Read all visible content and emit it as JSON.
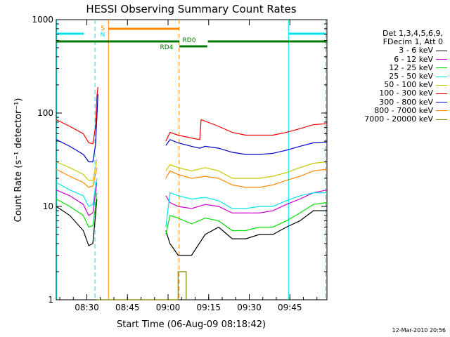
{
  "chart_data": {
    "type": "line",
    "title": "HESSI Observing Summary Count Rates",
    "xlabel": "Start Time (06-Aug-09 08:18:42)",
    "ylabel": "Count Rate (s⁻¹ detector⁻¹)",
    "yscale": "log",
    "ylim": [
      1,
      1000
    ],
    "xlim_minutes": [
      0,
      100
    ],
    "x_unit": "minutes after 08:18:42",
    "x_ticks": [
      {
        "label": "08:30",
        "minute": 11.3
      },
      {
        "label": "08:45",
        "minute": 26.3
      },
      {
        "label": "09:00",
        "minute": 41.3
      },
      {
        "label": "09:15",
        "minute": 56.3
      },
      {
        "label": "09:30",
        "minute": 71.3
      },
      {
        "label": "09:45",
        "minute": 86.3
      }
    ],
    "y_ticks": [
      {
        "label": "1",
        "value": 1
      },
      {
        "label": "10",
        "value": 10
      },
      {
        "label": "100",
        "value": 100
      },
      {
        "label": "1000",
        "value": 1000
      }
    ],
    "legend_header": [
      "Det 1,3,4,5,6,9,",
      "FDecim 1, Att 0"
    ],
    "series": [
      {
        "name": "3 - 6 keV",
        "color": "#000000",
        "points": [
          [
            0,
            10
          ],
          [
            5,
            8
          ],
          [
            10,
            5.5
          ],
          [
            12,
            3.8
          ],
          [
            13.5,
            4
          ],
          [
            14.5,
            8
          ],
          [
            15,
            12
          ],
          [
            16,
            null
          ],
          [
            40,
            null
          ],
          [
            40.5,
            5.5
          ],
          [
            42,
            4
          ],
          [
            45,
            3
          ],
          [
            50,
            3
          ],
          [
            55,
            5
          ],
          [
            60,
            6
          ],
          [
            65,
            4.5
          ],
          [
            70,
            4.5
          ],
          [
            75,
            5
          ],
          [
            80,
            5
          ],
          [
            85,
            6
          ],
          [
            90,
            7
          ],
          [
            95,
            9
          ],
          [
            100,
            9
          ]
        ]
      },
      {
        "name": "6 - 12 keV",
        "color": "#cc00cc",
        "points": [
          [
            0,
            15
          ],
          [
            5,
            13
          ],
          [
            10,
            10.5
          ],
          [
            12,
            8
          ],
          [
            13.5,
            8.5
          ],
          [
            14.5,
            14
          ],
          [
            15,
            18
          ],
          [
            16,
            null
          ],
          [
            40,
            null
          ],
          [
            40.5,
            13
          ],
          [
            42,
            11
          ],
          [
            45,
            10
          ],
          [
            50,
            9.5
          ],
          [
            55,
            10.5
          ],
          [
            60,
            10
          ],
          [
            65,
            8.5
          ],
          [
            70,
            8.5
          ],
          [
            75,
            8.5
          ],
          [
            80,
            9
          ],
          [
            85,
            10.5
          ],
          [
            90,
            12
          ],
          [
            95,
            14
          ],
          [
            100,
            15
          ]
        ]
      },
      {
        "name": "12 - 25 keV",
        "color": "#00dd00",
        "points": [
          [
            0,
            12
          ],
          [
            5,
            10
          ],
          [
            10,
            8
          ],
          [
            12,
            6
          ],
          [
            13.5,
            6.2
          ],
          [
            14.5,
            10
          ],
          [
            15,
            14
          ],
          [
            16,
            null
          ],
          [
            40,
            null
          ],
          [
            40.5,
            5
          ],
          [
            42,
            8
          ],
          [
            45,
            7.5
          ],
          [
            50,
            6.5
          ],
          [
            55,
            7.5
          ],
          [
            60,
            7
          ],
          [
            65,
            5.5
          ],
          [
            70,
            5.5
          ],
          [
            75,
            6
          ],
          [
            80,
            6
          ],
          [
            85,
            7
          ],
          [
            90,
            8.5
          ],
          [
            95,
            10.5
          ],
          [
            100,
            11
          ]
        ]
      },
      {
        "name": "25 - 50 keV",
        "color": "#00e5e5",
        "points": [
          [
            0,
            18
          ],
          [
            5,
            15
          ],
          [
            10,
            13
          ],
          [
            12,
            10
          ],
          [
            13.5,
            10.5
          ],
          [
            14.5,
            16
          ],
          [
            15,
            20
          ],
          [
            16,
            null
          ],
          [
            40,
            null
          ],
          [
            40.5,
            6
          ],
          [
            42,
            14
          ],
          [
            45,
            13
          ],
          [
            50,
            12
          ],
          [
            55,
            12.5
          ],
          [
            60,
            11.5
          ],
          [
            65,
            9.5
          ],
          [
            70,
            9.5
          ],
          [
            75,
            10
          ],
          [
            80,
            10
          ],
          [
            85,
            11.5
          ],
          [
            90,
            13
          ],
          [
            95,
            14
          ],
          [
            100,
            14
          ]
        ]
      },
      {
        "name": "50 - 100 keV",
        "color": "#c8c800",
        "points": [
          [
            0,
            30
          ],
          [
            5,
            26
          ],
          [
            10,
            22
          ],
          [
            12,
            19
          ],
          [
            13.5,
            19
          ],
          [
            14.5,
            26
          ],
          [
            15,
            32
          ],
          [
            16,
            null
          ],
          [
            40,
            null
          ],
          [
            40.5,
            24
          ],
          [
            42,
            28
          ],
          [
            45,
            26
          ],
          [
            50,
            24
          ],
          [
            55,
            26
          ],
          [
            60,
            24
          ],
          [
            65,
            20
          ],
          [
            70,
            20
          ],
          [
            75,
            20
          ],
          [
            80,
            21
          ],
          [
            85,
            23
          ],
          [
            90,
            26
          ],
          [
            95,
            29
          ],
          [
            100,
            30
          ]
        ]
      },
      {
        "name": "100 - 300 keV",
        "color": "#ee0000",
        "points": [
          [
            0,
            85
          ],
          [
            5,
            72
          ],
          [
            10,
            60
          ],
          [
            12,
            48
          ],
          [
            13.5,
            47
          ],
          [
            14.5,
            70
          ],
          [
            15,
            150
          ],
          [
            15.4,
            190
          ],
          [
            16,
            null
          ],
          [
            40,
            null
          ],
          [
            40.5,
            50
          ],
          [
            42,
            62
          ],
          [
            45,
            58
          ],
          [
            50,
            54
          ],
          [
            53,
            52
          ],
          [
            53.5,
            85
          ],
          [
            55,
            82
          ],
          [
            60,
            72
          ],
          [
            65,
            62
          ],
          [
            70,
            58
          ],
          [
            75,
            58
          ],
          [
            80,
            58
          ],
          [
            85,
            62
          ],
          [
            90,
            68
          ],
          [
            95,
            75
          ],
          [
            100,
            77
          ]
        ]
      },
      {
        "name": "300 - 800 keV",
        "color": "#0000cc",
        "points": [
          [
            0,
            52
          ],
          [
            5,
            44
          ],
          [
            10,
            36
          ],
          [
            12,
            30
          ],
          [
            13.5,
            30
          ],
          [
            14.5,
            45
          ],
          [
            15,
            90
          ],
          [
            15.4,
            160
          ],
          [
            16,
            null
          ],
          [
            40,
            null
          ],
          [
            40.5,
            45
          ],
          [
            42,
            52
          ],
          [
            45,
            48
          ],
          [
            50,
            44
          ],
          [
            53,
            42
          ],
          [
            55,
            44
          ],
          [
            60,
            42
          ],
          [
            65,
            38
          ],
          [
            70,
            36
          ],
          [
            75,
            36
          ],
          [
            80,
            37
          ],
          [
            85,
            40
          ],
          [
            90,
            44
          ],
          [
            95,
            48
          ],
          [
            100,
            49
          ]
        ]
      },
      {
        "name": "800 - 7000 keV",
        "color": "#ff8800",
        "points": [
          [
            0,
            25
          ],
          [
            5,
            21
          ],
          [
            10,
            18
          ],
          [
            12,
            16
          ],
          [
            13.5,
            16.5
          ],
          [
            14.5,
            22
          ],
          [
            15,
            26
          ],
          [
            16,
            null
          ],
          [
            40,
            null
          ],
          [
            40.5,
            20
          ],
          [
            42,
            24
          ],
          [
            45,
            22
          ],
          [
            50,
            20
          ],
          [
            55,
            21
          ],
          [
            60,
            20
          ],
          [
            65,
            17
          ],
          [
            70,
            16
          ],
          [
            75,
            16
          ],
          [
            80,
            17
          ],
          [
            85,
            19
          ],
          [
            90,
            21
          ],
          [
            95,
            24
          ],
          [
            100,
            25
          ]
        ]
      },
      {
        "name": "7000 - 20000 keV",
        "color": "#808000",
        "points": [
          [
            15,
            1
          ],
          [
            15.6,
            1
          ],
          [
            45,
            1
          ],
          [
            45,
            2
          ],
          [
            48,
            2
          ],
          [
            48,
            1
          ]
        ]
      }
    ],
    "annotations": [
      {
        "text": "S",
        "color": "#ff8800"
      },
      {
        "text": "N",
        "color": "#00e5e5"
      },
      {
        "text": "RD0",
        "color": "#007700"
      },
      {
        "text": "RD4",
        "color": "#007700"
      }
    ],
    "grid": false,
    "legend_position": "right"
  },
  "footer": {
    "date_stamp": "12-Mar-2010 20:56"
  }
}
